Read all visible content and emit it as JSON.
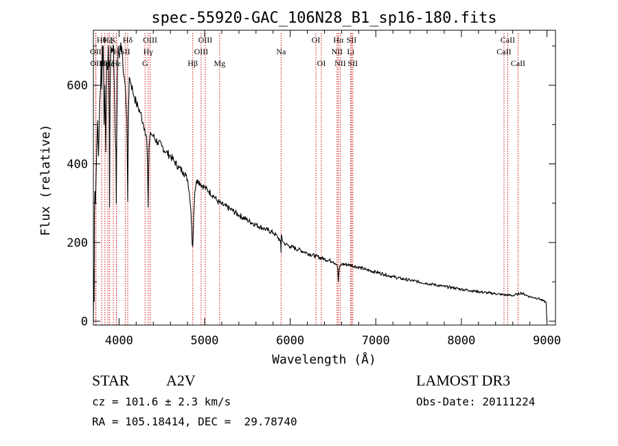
{
  "chart_data": {
    "type": "line",
    "title": "spec-55920-GAC_106N28_B1_sp16-180.fits",
    "xlabel": "Wavelength (Å)",
    "ylabel": "Flux (relative)",
    "xlim": [
      3700,
      9100
    ],
    "ylim": [
      -10,
      740
    ],
    "xticks": [
      4000,
      5000,
      6000,
      7000,
      8000,
      9000
    ],
    "xtick_labels": [
      "4000",
      "5000",
      "6000",
      "7000",
      "8000",
      "9000"
    ],
    "yticks": [
      0,
      200,
      400,
      600
    ],
    "ytick_labels": [
      "0",
      "200",
      "400",
      "600"
    ],
    "grid": false,
    "series": [
      {
        "name": "spectrum",
        "color": "#000000",
        "x": [
          3700,
          3705,
          3710,
          3712,
          3718,
          3725,
          3735,
          3745,
          3750,
          3760,
          3770,
          3775,
          3785,
          3790,
          3797,
          3805,
          3810,
          3815,
          3825,
          3835,
          3845,
          3855,
          3865,
          3875,
          3885,
          3889,
          3895,
          3905,
          3920,
          3935,
          3945,
          3955,
          3963,
          3968,
          3972,
          3980,
          3990,
          4000,
          4015,
          4030,
          4045,
          4060,
          4075,
          4090,
          4101,
          4110,
          4120,
          4140,
          4160,
          4180,
          4200,
          4220,
          4250,
          4280,
          4300,
          4320,
          4330,
          4338,
          4340,
          4343,
          4350,
          4370,
          4400,
          4450,
          4500,
          4550,
          4600,
          4650,
          4700,
          4750,
          4780,
          4800,
          4820,
          4840,
          4850,
          4855,
          4861,
          4866,
          4872,
          4885,
          4900,
          4920,
          4950,
          5000,
          5050,
          5100,
          5150,
          5200,
          5300,
          5400,
          5500,
          5600,
          5700,
          5800,
          5850,
          5880,
          5890,
          5893,
          5896,
          5905,
          5920,
          5950,
          6000,
          6100,
          6200,
          6300,
          6400,
          6500,
          6540,
          6555,
          6560,
          6563,
          6566,
          6575,
          6600,
          6700,
          6800,
          6900,
          7000,
          7100,
          7200,
          7300,
          7400,
          7500,
          7600,
          7700,
          7800,
          7900,
          8000,
          8100,
          8200,
          8300,
          8400,
          8450,
          8500,
          8550,
          8600,
          8650,
          8700,
          8750,
          8800,
          8850,
          8900,
          8950,
          8990,
          9000
        ],
        "y": [
          0,
          130,
          50,
          270,
          330,
          300,
          400,
          480,
          510,
          420,
          520,
          560,
          600,
          660,
          590,
          700,
          650,
          700,
          500,
          600,
          430,
          650,
          640,
          700,
          520,
          290,
          560,
          700,
          690,
          700,
          600,
          470,
          430,
          300,
          450,
          620,
          700,
          680,
          690,
          700,
          650,
          620,
          590,
          520,
          305,
          540,
          620,
          605,
          585,
          570,
          555,
          545,
          530,
          505,
          490,
          470,
          420,
          320,
          290,
          340,
          440,
          480,
          470,
          455,
          445,
          430,
          420,
          405,
          390,
          380,
          370,
          360,
          330,
          280,
          235,
          195,
          190,
          215,
          270,
          330,
          350,
          360,
          350,
          340,
          330,
          320,
          305,
          297,
          285,
          270,
          257,
          245,
          235,
          225,
          215,
          205,
          195,
          175,
          220,
          210,
          200,
          195,
          190,
          182,
          173,
          165,
          158,
          152,
          145,
          135,
          110,
          100,
          115,
          135,
          145,
          143,
          137,
          130,
          125,
          119,
          113,
          108,
          104,
          100,
          96,
          92,
          88,
          85,
          81,
          78,
          75,
          72,
          70,
          68,
          67,
          66,
          65,
          68,
          72,
          67,
          62,
          60,
          58,
          52,
          48,
          0
        ]
      }
    ],
    "lines": [
      {
        "x": 3727,
        "label": "OII",
        "row": 2,
        "color": "#cc0000"
      },
      {
        "x": 3730,
        "label": "OII",
        "row": 3,
        "color": "#cc0000"
      },
      {
        "x": 3797,
        "label": "Hθ",
        "row": 1,
        "color": "#cc0000"
      },
      {
        "x": 3835,
        "label": "Hη",
        "row": 3,
        "color": "#cc0000"
      },
      {
        "x": 3869,
        "label": "Hζ",
        "row": 1,
        "color": "#cc0000"
      },
      {
        "x": 3889,
        "label": "Hζ",
        "row": 3,
        "color": "#cc0000"
      },
      {
        "x": 3933,
        "label": "K",
        "row": 1,
        "color": "#cc0000"
      },
      {
        "x": 3968,
        "label": "H",
        "row": 2,
        "color": "#cc0000"
      },
      {
        "x": 3970,
        "label": "Hε",
        "row": 3,
        "color": "#cc0000"
      },
      {
        "x": 4101,
        "label": "Hδ",
        "row": 1,
        "color": "#cc0000"
      },
      {
        "x": 4072,
        "label": "SII",
        "row": 2,
        "color": "#cc0000"
      },
      {
        "x": 4304,
        "label": "G",
        "row": 3,
        "color": "#cc0000"
      },
      {
        "x": 4340,
        "label": "Hγ",
        "row": 2,
        "color": "#cc0000"
      },
      {
        "x": 4363,
        "label": "OIII",
        "row": 1,
        "color": "#cc0000"
      },
      {
        "x": 4861,
        "label": "Hβ",
        "row": 3,
        "color": "#cc0000"
      },
      {
        "x": 4959,
        "label": "OIII",
        "row": 2,
        "color": "#cc0000"
      },
      {
        "x": 5007,
        "label": "OIII",
        "row": 1,
        "color": "#cc0000"
      },
      {
        "x": 5175,
        "label": "Mg",
        "row": 3,
        "color": "#cc0000"
      },
      {
        "x": 5893,
        "label": "Na",
        "row": 2,
        "color": "#cc0000"
      },
      {
        "x": 6300,
        "label": "OI",
        "row": 1,
        "color": "#cc0000"
      },
      {
        "x": 6364,
        "label": "OI",
        "row": 3,
        "color": "#cc0000"
      },
      {
        "x": 6548,
        "label": "NII",
        "row": 2,
        "color": "#cc0000"
      },
      {
        "x": 6563,
        "label": "Hα",
        "row": 1,
        "color": "#cc0000"
      },
      {
        "x": 6584,
        "label": "NII",
        "row": 3,
        "color": "#cc0000"
      },
      {
        "x": 6707,
        "label": "Li",
        "row": 2,
        "color": "#cc0000"
      },
      {
        "x": 6716,
        "label": "SII",
        "row": 1,
        "color": "#cc0000"
      },
      {
        "x": 6731,
        "label": "SII",
        "row": 3,
        "color": "#cc0000"
      },
      {
        "x": 8498,
        "label": "CaII",
        "row": 2,
        "color": "#cc0000"
      },
      {
        "x": 8542,
        "label": "CaII",
        "row": 1,
        "color": "#cc0000"
      },
      {
        "x": 8662,
        "label": "CaII",
        "row": 3,
        "color": "#cc0000"
      }
    ]
  },
  "info": {
    "object_type": "STAR",
    "subclass": "A2V",
    "survey": "LAMOST DR3",
    "redshift": "cz = 101.6 ± 2.3 km/s",
    "obs_date": "Obs-Date: 20111224",
    "coords": "RA = 105.18414, DEC =  29.78740"
  }
}
